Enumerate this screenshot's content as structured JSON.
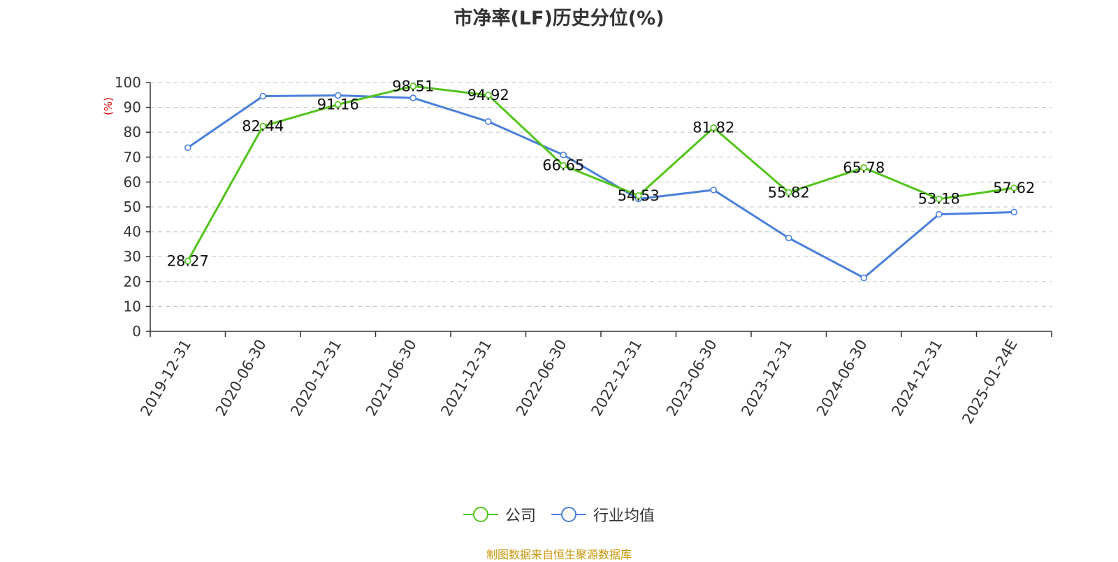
{
  "chart_data": {
    "type": "line",
    "title": "市净率(LF)历史分位(%)",
    "ylabel": "(%)",
    "xlabel": "",
    "ylim": [
      0,
      100
    ],
    "yticks": [
      0,
      10,
      20,
      30,
      40,
      50,
      60,
      70,
      80,
      90,
      100
    ],
    "grid": true,
    "legend_position": "bottom",
    "categories": [
      "2019-12-31",
      "2020-06-30",
      "2020-12-31",
      "2021-06-30",
      "2021-12-31",
      "2022-06-30",
      "2022-12-31",
      "2023-06-30",
      "2023-12-31",
      "2024-06-30",
      "2024-12-31",
      "2025-01-24E"
    ],
    "series": [
      {
        "name": "公司",
        "color": "#52c41a",
        "show_labels": true,
        "values": [
          28.27,
          82.44,
          91.16,
          98.51,
          94.92,
          66.65,
          54.53,
          81.82,
          55.82,
          65.78,
          53.18,
          57.62
        ]
      },
      {
        "name": "行业均值",
        "color": "#4a7fdc",
        "show_labels": false,
        "values": [
          73.8,
          94.5,
          94.8,
          93.8,
          84.3,
          70.9,
          53.2,
          56.8,
          37.5,
          21.5,
          47.0,
          47.9
        ]
      }
    ]
  },
  "footer": {
    "source": "制图数据来自恒生聚源数据库",
    "source_color": "#c8960c"
  }
}
